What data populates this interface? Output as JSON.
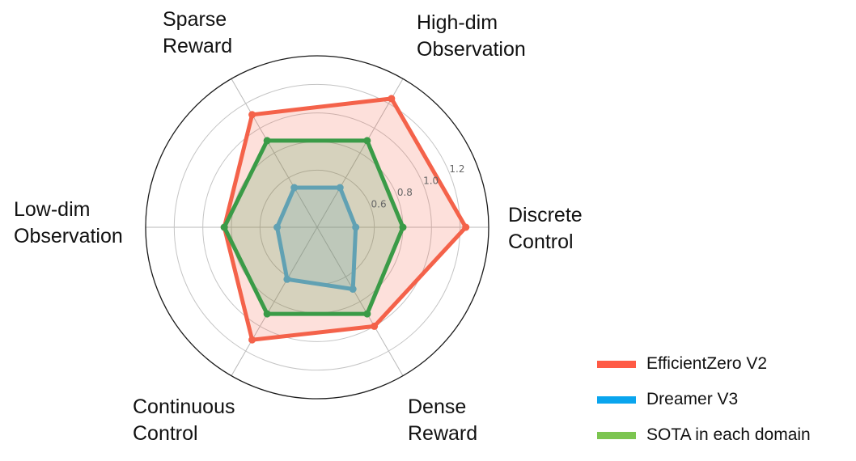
{
  "chart_data": {
    "type": "radar",
    "axes": [
      [
        "Discrete",
        "Control"
      ],
      [
        "High-dim",
        "Observation"
      ],
      [
        "Sparse",
        "Reward"
      ],
      [
        "Low-dim",
        "Observation"
      ],
      [
        "Continuous",
        "Control"
      ],
      [
        "Dense",
        "Reward"
      ]
    ],
    "rlim": [
      0.2,
      1.4
    ],
    "rticks": [
      0.6,
      0.8,
      1.0,
      1.2
    ],
    "rtick_labels": [
      "0.6",
      "0.8",
      "1.0",
      "1.2"
    ],
    "grid": true,
    "legend_position": "bottom-right",
    "series": [
      {
        "name": "EfficientZero V2",
        "color": "#F4624A",
        "legend_color": "#FF5A45",
        "values": [
          1.24,
          1.24,
          1.11,
          0.85,
          1.11,
          1.0
        ]
      },
      {
        "name": "Dreamer V3",
        "color": "#6BA3CF",
        "legend_color": "#0AA5EE",
        "values": [
          0.47,
          0.52,
          0.52,
          0.48,
          0.62,
          0.7
        ]
      },
      {
        "name": "SOTA in each domain",
        "color": "#3A9B47",
        "legend_color": "#7CC550",
        "values": [
          0.8,
          0.9,
          0.9,
          0.85,
          0.9,
          0.9
        ]
      }
    ]
  }
}
